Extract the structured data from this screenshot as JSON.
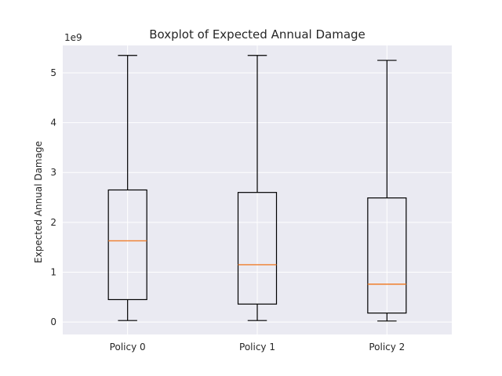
{
  "chart_data": {
    "type": "boxplot",
    "title": "Boxplot of Expected Annual Damage",
    "ylabel": "Expected Annual Damage",
    "xlabel": "",
    "y_offset_label": "1e9",
    "y_scale": 1000000000,
    "ylim": [
      -0.25,
      5.55
    ],
    "yticks": [
      0,
      1,
      2,
      3,
      4,
      5
    ],
    "grid": true,
    "colors": {
      "background": "#eaeaf2",
      "grid": "#ffffff",
      "box": "#000000",
      "median": "#f07d2a"
    },
    "categories": [
      "Policy 0",
      "Policy 1",
      "Policy 2"
    ],
    "boxes": [
      {
        "label": "Policy 0",
        "whislo": 0.03,
        "q1": 0.45,
        "med": 1.63,
        "q3": 2.65,
        "whishi": 5.35
      },
      {
        "label": "Policy 1",
        "whislo": 0.03,
        "q1": 0.36,
        "med": 1.15,
        "q3": 2.6,
        "whishi": 5.35
      },
      {
        "label": "Policy 2",
        "whislo": 0.02,
        "q1": 0.18,
        "med": 0.76,
        "q3": 2.49,
        "whishi": 5.25
      }
    ]
  }
}
